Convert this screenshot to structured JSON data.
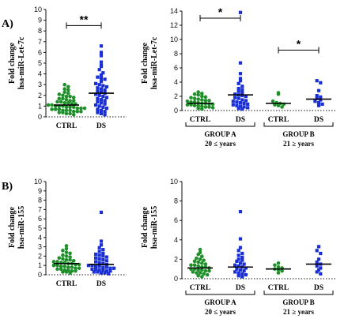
{
  "figure": {
    "panel_labels": [
      "A)",
      "B)"
    ]
  },
  "colors": {
    "ctrl": "#1f8f2a",
    "ds": "#1a2fd4",
    "axis": "#111111"
  },
  "chart_data": [
    {
      "id": "A-left",
      "type": "scatter",
      "ylabel": [
        "Fold change",
        "hsa-miR-Let-7c"
      ],
      "ylim": [
        0,
        10
      ],
      "yticks": [
        0,
        1,
        2,
        3,
        4,
        5,
        6,
        7,
        8,
        9,
        10
      ],
      "categories": [
        "CTRL",
        "DS"
      ],
      "significance": [
        {
          "from": 0,
          "to": 1,
          "label": "**",
          "y": 8.5
        }
      ],
      "series": [
        {
          "category": "CTRL",
          "marker": "circle",
          "color": "ctrl",
          "mean": 1.1,
          "values": [
            3.0,
            2.8,
            2.6,
            2.5,
            2.3,
            2.2,
            2.1,
            2.0,
            1.9,
            1.9,
            1.8,
            1.7,
            1.7,
            1.6,
            1.5,
            1.5,
            1.4,
            1.4,
            1.3,
            1.3,
            1.2,
            1.2,
            1.1,
            1.1,
            1.0,
            1.0,
            1.0,
            0.9,
            0.9,
            0.9,
            0.8,
            0.8,
            0.8,
            0.7,
            0.7,
            0.7,
            0.6,
            0.6,
            0.6,
            0.5,
            0.5,
            0.5,
            0.4,
            0.4,
            0.3,
            0.3,
            0.2
          ]
        },
        {
          "category": "DS",
          "marker": "square",
          "color": "ds",
          "mean": 2.2,
          "values": [
            6.6,
            6.0,
            5.7,
            5.1,
            4.8,
            4.7,
            4.4,
            4.1,
            3.9,
            3.7,
            3.6,
            3.5,
            3.3,
            3.1,
            3.0,
            2.9,
            2.8,
            2.7,
            2.6,
            2.5,
            2.4,
            2.3,
            2.2,
            2.1,
            2.0,
            1.9,
            1.8,
            1.7,
            1.6,
            1.5,
            1.4,
            1.3,
            1.2,
            1.1,
            1.0,
            0.9,
            0.8,
            0.7,
            0.6,
            0.5,
            0.4,
            0.3,
            0.2
          ]
        }
      ]
    },
    {
      "id": "A-right",
      "type": "scatter",
      "ylabel": [
        "Fold change",
        "hsa-miR-Let-7c"
      ],
      "ylim": [
        0,
        14
      ],
      "yticks": [
        0,
        2,
        4,
        6,
        8,
        10,
        12,
        14
      ],
      "categories": [
        "CTRL",
        "DS",
        "CTRL",
        "DS"
      ],
      "groups": [
        {
          "name": "GROUP A",
          "range": "20 ≤ years",
          "categories": [
            0,
            1
          ]
        },
        {
          "name": "GROUP B",
          "range": "21 ≥ years",
          "categories": [
            2,
            3
          ]
        }
      ],
      "significance": [
        {
          "from": 0,
          "to": 1,
          "label": "*",
          "y": 13
        },
        {
          "from": 2,
          "to": 3,
          "label": "*",
          "y": 8.5
        }
      ],
      "series": [
        {
          "category_index": 0,
          "marker": "circle",
          "color": "ctrl",
          "mean": 1.0,
          "values": [
            2.6,
            2.4,
            2.3,
            2.2,
            2.0,
            1.9,
            1.8,
            1.7,
            1.6,
            1.5,
            1.4,
            1.4,
            1.3,
            1.2,
            1.2,
            1.1,
            1.0,
            1.0,
            0.9,
            0.9,
            0.8,
            0.8,
            0.7,
            0.7,
            0.6,
            0.5,
            0.5,
            0.4,
            0.3,
            0.2
          ]
        },
        {
          "category_index": 1,
          "marker": "square",
          "color": "ds",
          "mean": 2.2,
          "values": [
            13.8,
            6.7,
            5.2,
            4.5,
            4.2,
            3.8,
            3.4,
            3.1,
            2.9,
            2.7,
            2.5,
            2.3,
            2.2,
            2.1,
            2.0,
            1.8,
            1.7,
            1.5,
            1.4,
            1.3,
            1.2,
            1.1,
            1.0,
            0.9,
            0.8,
            0.7,
            0.6,
            0.5,
            0.4,
            0.3,
            0.2
          ]
        },
        {
          "category_index": 2,
          "marker": "circle",
          "color": "ctrl",
          "mean": 1.0,
          "values": [
            2.5,
            2.3,
            1.3,
            1.1,
            1.0,
            0.9,
            0.8,
            0.7,
            0.5
          ]
        },
        {
          "category_index": 3,
          "marker": "square",
          "color": "ds",
          "mean": 1.6,
          "values": [
            4.2,
            3.9,
            2.8,
            2.1,
            1.9,
            1.7,
            1.5,
            1.3,
            1.1,
            0.9,
            0.7
          ]
        }
      ]
    },
    {
      "id": "B-left",
      "type": "scatter",
      "ylabel": [
        "Fold change",
        "hsa-miR-155"
      ],
      "ylim": [
        0,
        10
      ],
      "yticks": [
        0,
        1,
        2,
        3,
        4,
        5,
        6,
        7,
        8,
        9,
        10
      ],
      "categories": [
        "CTRL",
        "DS"
      ],
      "series": [
        {
          "category": "CTRL",
          "marker": "circle",
          "color": "ctrl",
          "mean": 1.2,
          "values": [
            3.1,
            2.8,
            2.6,
            2.4,
            2.3,
            2.1,
            2.0,
            1.9,
            1.8,
            1.7,
            1.6,
            1.6,
            1.5,
            1.4,
            1.4,
            1.3,
            1.3,
            1.2,
            1.2,
            1.1,
            1.1,
            1.0,
            1.0,
            0.9,
            0.9,
            0.8,
            0.8,
            0.7,
            0.7,
            0.6,
            0.6,
            0.5,
            0.5,
            0.4,
            0.4,
            0.3,
            0.3,
            0.2
          ]
        },
        {
          "category": "DS",
          "marker": "square",
          "color": "ds",
          "mean": 1.1,
          "values": [
            6.7,
            3.6,
            3.2,
            2.9,
            2.7,
            2.5,
            2.3,
            2.2,
            2.1,
            2.0,
            1.9,
            1.8,
            1.7,
            1.6,
            1.5,
            1.4,
            1.3,
            1.2,
            1.1,
            1.0,
            1.0,
            0.9,
            0.9,
            0.8,
            0.8,
            0.7,
            0.7,
            0.6,
            0.6,
            0.5,
            0.5,
            0.4,
            0.4,
            0.3,
            0.3,
            0.2,
            0.2,
            0.1
          ]
        }
      ]
    },
    {
      "id": "B-right",
      "type": "scatter",
      "ylabel": [
        "Fold change",
        "hsa-miR-155"
      ],
      "ylim": [
        0,
        10
      ],
      "yticks": [
        0,
        2,
        4,
        6,
        8,
        10
      ],
      "categories": [
        "CTRL",
        "DS",
        "CTRL",
        "DS"
      ],
      "groups": [
        {
          "name": "GROUP A",
          "range": "20 ≤ years",
          "categories": [
            0,
            1
          ]
        },
        {
          "name": "GROUP B",
          "range": "21 ≥ years",
          "categories": [
            2,
            3
          ]
        }
      ],
      "series": [
        {
          "category_index": 0,
          "marker": "circle",
          "color": "ctrl",
          "mean": 1.1,
          "values": [
            3.0,
            2.7,
            2.5,
            2.3,
            2.1,
            2.0,
            1.9,
            1.8,
            1.7,
            1.6,
            1.5,
            1.4,
            1.4,
            1.3,
            1.2,
            1.2,
            1.1,
            1.0,
            1.0,
            0.9,
            0.9,
            0.8,
            0.8,
            0.7,
            0.6,
            0.6,
            0.5,
            0.4,
            0.3,
            0.2
          ]
        },
        {
          "category_index": 1,
          "marker": "square",
          "color": "ds",
          "mean": 1.2,
          "values": [
            6.9,
            4.1,
            3.2,
            2.9,
            2.6,
            2.4,
            2.2,
            2.0,
            1.9,
            1.8,
            1.6,
            1.5,
            1.4,
            1.3,
            1.2,
            1.1,
            1.0,
            0.9,
            0.8,
            0.7,
            0.6,
            0.5,
            0.4,
            0.3,
            0.2
          ]
        },
        {
          "category_index": 2,
          "marker": "circle",
          "color": "ctrl",
          "mean": 1.0,
          "values": [
            1.6,
            1.4,
            1.2,
            1.1,
            1.0,
            0.9,
            0.8,
            0.6
          ]
        },
        {
          "category_index": 3,
          "marker": "square",
          "color": "ds",
          "mean": 1.5,
          "values": [
            3.3,
            2.9,
            2.6,
            2.0,
            1.7,
            1.5,
            1.3,
            1.1,
            0.9,
            0.7,
            0.5
          ]
        }
      ]
    }
  ]
}
